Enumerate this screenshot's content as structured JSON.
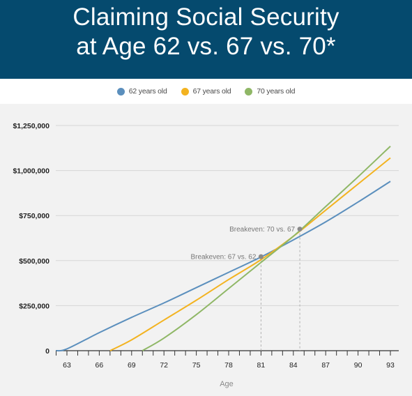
{
  "header": {
    "title_line1": "Claiming Social Security",
    "title_line2": "at Age 62 vs. 67 vs. 70*"
  },
  "colors": {
    "header_bg": "#054a6e",
    "series_62": "#5b8fbd",
    "series_67": "#f3b320",
    "series_70": "#8fb766"
  },
  "chart_data": {
    "type": "line",
    "title": "Claiming Social Security at Age 62 vs. 67 vs. 70*",
    "xlabel": "Age",
    "ylabel": "",
    "xlim": [
      62,
      93
    ],
    "ylim": [
      0,
      1300000
    ],
    "grid": true,
    "legend": "top-center",
    "x_ticks": [
      63,
      66,
      69,
      72,
      75,
      78,
      81,
      84,
      87,
      90,
      93
    ],
    "y_ticks": [
      0,
      250000,
      500000,
      750000,
      1000000,
      1250000
    ],
    "y_tick_labels": [
      "0",
      "$250,000",
      "$500,000",
      "$750,000",
      "$1,000,000",
      "$1,250,000"
    ],
    "series": [
      {
        "name": "62 years old",
        "color": "#5b8fbd",
        "x": [
          62,
          63,
          66,
          69,
          72,
          75,
          78,
          81,
          84,
          87,
          90,
          93
        ],
        "y": [
          0,
          10000,
          100000,
          185000,
          265000,
          350000,
          435000,
          520000,
          615000,
          715000,
          825000,
          940000
        ]
      },
      {
        "name": "67 years old",
        "color": "#f3b320",
        "x": [
          67,
          69,
          72,
          75,
          78,
          81,
          84,
          87,
          90,
          93
        ],
        "y": [
          0,
          60000,
          170000,
          280000,
          395000,
          505000,
          635000,
          780000,
          925000,
          1070000
        ]
      },
      {
        "name": "70 years old",
        "color": "#8fb766",
        "x": [
          70,
          72,
          75,
          78,
          81,
          84,
          87,
          90,
          93
        ],
        "y": [
          0,
          70000,
          200000,
          345000,
          490000,
          635000,
          800000,
          965000,
          1135000
        ]
      }
    ],
    "annotations": [
      {
        "label": "Breakeven: 67 vs. 62",
        "x": 81,
        "y": 522000
      },
      {
        "label": "Breakeven: 70 vs. 67",
        "x": 84.6,
        "y": 675000
      }
    ]
  }
}
